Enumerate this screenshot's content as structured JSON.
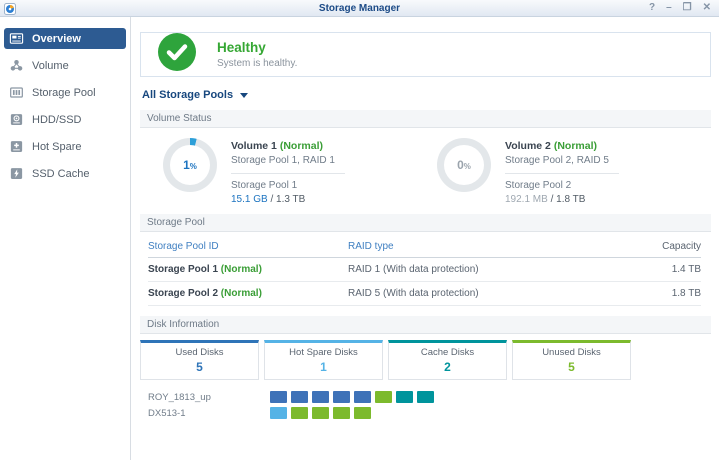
{
  "window": {
    "title": "Storage Manager",
    "controls": {
      "help": "?",
      "minimize": "–",
      "restore": "❐",
      "close": "✕"
    }
  },
  "sidebar": {
    "items": [
      {
        "label": "Overview",
        "icon": "overview-icon",
        "selected": true
      },
      {
        "label": "Volume",
        "icon": "volume-icon",
        "selected": false
      },
      {
        "label": "Storage Pool",
        "icon": "storage-pool-icon",
        "selected": false
      },
      {
        "label": "HDD/SSD",
        "icon": "hdd-ssd-icon",
        "selected": false
      },
      {
        "label": "Hot Spare",
        "icon": "hot-spare-icon",
        "selected": false
      },
      {
        "label": "SSD Cache",
        "icon": "ssd-cache-icon",
        "selected": false
      }
    ]
  },
  "health": {
    "status": "Healthy",
    "message": "System is healthy."
  },
  "pool_filter": {
    "label": "All Storage Pools"
  },
  "section_titles": {
    "volume_status": "Volume Status",
    "storage_pool": "Storage Pool",
    "disk_information": "Disk Information"
  },
  "units": {
    "percent": "%"
  },
  "volumes": [
    {
      "name": "Volume 1",
      "status": "(Normal)",
      "description": "Storage Pool 1, RAID 1",
      "pool": "Storage Pool 1",
      "used": "15.1 GB",
      "separator": " / ",
      "total": "1.3 TB",
      "percent": 1,
      "percent_label": "1",
      "percent_color": "#1d74c0",
      "used_color": "#1d74c0",
      "ring_color": "#2d9fd8"
    },
    {
      "name": "Volume 2",
      "status": "(Normal)",
      "description": "Storage Pool 2, RAID 5",
      "pool": "Storage Pool 2",
      "used": "192.1 MB",
      "separator": " / ",
      "total": "1.8 TB",
      "percent": 0,
      "percent_label": "0",
      "percent_color": "#9aa3ac",
      "used_color": "#9fa8b1",
      "ring_color": "#2d9fd8"
    }
  ],
  "storage_pool_table": {
    "headers": [
      "Storage Pool ID",
      "RAID type",
      "Capacity"
    ],
    "rows": [
      {
        "id": "Storage Pool 1",
        "status": "(Normal)",
        "raid": "RAID 1 (With data protection)",
        "capacity": "1.4 TB"
      },
      {
        "id": "Storage Pool 2",
        "status": "(Normal)",
        "raid": "RAID 5 (With data protection)",
        "capacity": "1.8 TB"
      }
    ]
  },
  "disk_stats": [
    {
      "label": "Used Disks",
      "value": "5",
      "color": "#2e74b8"
    },
    {
      "label": "Hot Spare Disks",
      "value": "1",
      "color": "#55b3e6"
    },
    {
      "label": "Cache Disks",
      "value": "2",
      "color": "#00949c"
    },
    {
      "label": "Unused Disks",
      "value": "5",
      "color": "#7cba2d"
    }
  ],
  "disk_legend_colors": {
    "used": "#3e72b8",
    "hotspare": "#55b3e6",
    "cache": "#00949c",
    "unused": "#7cba2d"
  },
  "enclosures": [
    {
      "label": "ROY_1813_up",
      "disks": [
        "used",
        "used",
        "used",
        "used",
        "used",
        "unused",
        "cache",
        "cache"
      ]
    },
    {
      "label": "DX513-1",
      "disks": [
        "hotspare",
        "unused",
        "unused",
        "unused",
        "unused"
      ]
    }
  ],
  "colors": {
    "healthy_green": "#2ea43c",
    "status_green": "#3a9e36",
    "sidebar_selected": "#2d5b92",
    "title_navy": "#1b4a86",
    "table_header_blue": "#3f7fc1",
    "donut_track": "#e3e7ea"
  }
}
